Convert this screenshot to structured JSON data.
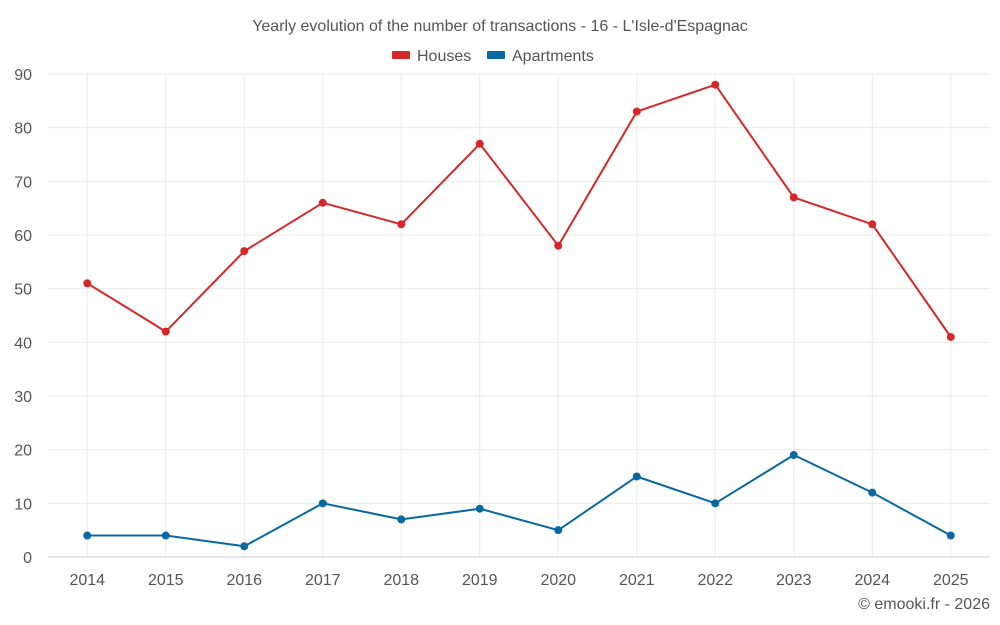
{
  "chart_data": {
    "type": "line",
    "title": "Yearly evolution of the number of transactions - 16 - L'Isle-d'Espagnac",
    "categories": [
      "2014",
      "2015",
      "2016",
      "2017",
      "2018",
      "2019",
      "2020",
      "2021",
      "2022",
      "2023",
      "2024",
      "2025"
    ],
    "series": [
      {
        "name": "Houses",
        "color": "#d62728",
        "values": [
          51,
          42,
          57,
          66,
          62,
          77,
          58,
          83,
          88,
          67,
          62,
          41
        ]
      },
      {
        "name": "Apartments",
        "color": "#0868a0",
        "values": [
          4,
          4,
          2,
          10,
          7,
          9,
          5,
          15,
          10,
          19,
          12,
          4
        ]
      }
    ],
    "ylim": [
      0,
      90
    ],
    "yticks": [
      0,
      10,
      20,
      30,
      40,
      50,
      60,
      70,
      80,
      90
    ],
    "grid": true,
    "legend_position": "top-center"
  },
  "footer": "© emooki.fr - 2026"
}
